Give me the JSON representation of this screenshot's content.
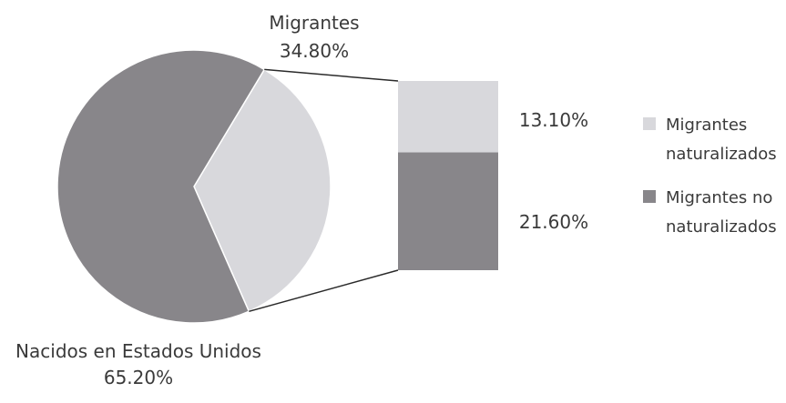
{
  "chart_data": {
    "type": "pie",
    "slices": [
      {
        "label": "Migrantes",
        "value": 34.8,
        "value_label": "34.80%",
        "color": "#d8d8dc"
      },
      {
        "label": "Nacidos en Estados Unidos",
        "value": 65.2,
        "value_label": "65.20%",
        "color": "#88868a"
      }
    ],
    "breakdown": {
      "of": "Migrantes",
      "type": "stacked-bar",
      "segments": [
        {
          "label_lines": [
            "Migrantes",
            "naturalizados"
          ],
          "value": 13.1,
          "value_label": "13.10%",
          "color": "#d8d8dc"
        },
        {
          "label_lines": [
            "Migrantes no",
            "naturalizados"
          ],
          "value": 21.6,
          "value_label": "21.60%",
          "color": "#88868a"
        }
      ]
    },
    "legend": {
      "placement": "right",
      "items": [
        {
          "lines": [
            "Migrantes",
            "naturalizados"
          ],
          "color": "#d8d8dc"
        },
        {
          "lines": [
            "Migrantes no",
            "naturalizados"
          ],
          "color": "#88868a"
        }
      ]
    }
  }
}
